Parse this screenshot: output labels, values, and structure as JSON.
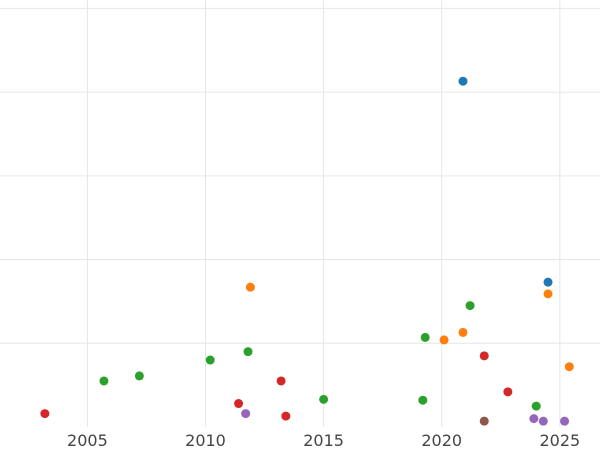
{
  "chart_data": {
    "type": "scatter",
    "title": "",
    "xlabel": "",
    "ylabel": "",
    "xlim": [
      2001.3,
      2026.7
    ],
    "ylim": [
      0,
      5.1
    ],
    "grid": true,
    "legend": "none",
    "x_ticks": [
      2005,
      2010,
      2015,
      2020,
      2025
    ],
    "x_tick_labels": [
      "2005",
      "2010",
      "2015",
      "2020",
      "2025"
    ],
    "y_gridlines": [
      1,
      2,
      3,
      4,
      5
    ],
    "series": [
      {
        "color": "#1f77b4",
        "points": [
          {
            "x": 2020.9,
            "y": 4.13
          },
          {
            "x": 2024.5,
            "y": 1.73
          }
        ]
      },
      {
        "color": "#ff7f0e",
        "points": [
          {
            "x": 2011.9,
            "y": 1.67
          },
          {
            "x": 2020.1,
            "y": 1.04
          },
          {
            "x": 2020.9,
            "y": 1.13
          },
          {
            "x": 2024.5,
            "y": 1.59
          },
          {
            "x": 2025.4,
            "y": 0.72
          }
        ]
      },
      {
        "color": "#2ca02c",
        "points": [
          {
            "x": 2005.7,
            "y": 0.55
          },
          {
            "x": 2007.2,
            "y": 0.61
          },
          {
            "x": 2010.2,
            "y": 0.8
          },
          {
            "x": 2011.8,
            "y": 0.9
          },
          {
            "x": 2015.0,
            "y": 0.33
          },
          {
            "x": 2019.2,
            "y": 0.32
          },
          {
            "x": 2019.3,
            "y": 1.07
          },
          {
            "x": 2021.2,
            "y": 1.45
          },
          {
            "x": 2024.0,
            "y": 0.25
          }
        ]
      },
      {
        "color": "#d62728",
        "points": [
          {
            "x": 2003.2,
            "y": 0.16
          },
          {
            "x": 2011.4,
            "y": 0.28
          },
          {
            "x": 2013.2,
            "y": 0.55
          },
          {
            "x": 2013.4,
            "y": 0.13
          },
          {
            "x": 2021.8,
            "y": 0.85
          },
          {
            "x": 2022.8,
            "y": 0.42
          }
        ]
      },
      {
        "color": "#9467bd",
        "points": [
          {
            "x": 2011.7,
            "y": 0.16
          },
          {
            "x": 2023.9,
            "y": 0.1
          },
          {
            "x": 2024.3,
            "y": 0.07
          },
          {
            "x": 2025.2,
            "y": 0.07
          }
        ]
      },
      {
        "color": "#8c564b",
        "points": [
          {
            "x": 2021.8,
            "y": 0.07
          }
        ]
      }
    ]
  }
}
